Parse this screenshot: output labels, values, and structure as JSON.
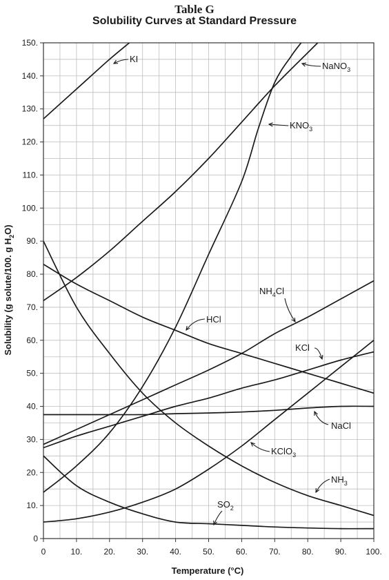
{
  "chart_data": {
    "type": "line",
    "title": "Table G",
    "subtitle": "Solubility Curves at Standard Pressure",
    "xlabel": "Temperature (°C)",
    "ylabel": "Solubility (g solute/100. g H2O)",
    "xlim": [
      0,
      100
    ],
    "ylim": [
      0,
      150
    ],
    "xticks": [
      0,
      10,
      20,
      30,
      40,
      50,
      60,
      70,
      80,
      90,
      100
    ],
    "xtick_labels": [
      "0",
      "10.",
      "20.",
      "30.",
      "40.",
      "50.",
      "60.",
      "70.",
      "80.",
      "90.",
      "100."
    ],
    "yticks": [
      0,
      10,
      20,
      30,
      40,
      50,
      60,
      70,
      80,
      90,
      100,
      110,
      120,
      130,
      140,
      150
    ],
    "ytick_labels": [
      "0",
      "10.",
      "20.",
      "30.",
      "40.",
      "50.",
      "60.",
      "70.",
      "80.",
      "90.",
      "100.",
      "110.",
      "120.",
      "130.",
      "140.",
      "150."
    ],
    "grid": true,
    "series": [
      {
        "name": "KI",
        "x": [
          0,
          10,
          20,
          26
        ],
        "y": [
          127,
          136,
          145,
          150
        ]
      },
      {
        "name": "NaNO3",
        "x": [
          0,
          10,
          20,
          30,
          40,
          50,
          60,
          70,
          80,
          83
        ],
        "y": [
          72,
          79,
          87,
          96,
          105,
          115,
          126,
          137,
          147,
          150
        ]
      },
      {
        "name": "KNO3",
        "x": [
          0,
          10,
          20,
          30,
          40,
          50,
          60,
          65,
          70,
          75,
          78
        ],
        "y": [
          14,
          22,
          32,
          46,
          64,
          86,
          108,
          124,
          138,
          146,
          150
        ]
      },
      {
        "name": "HCl",
        "x": [
          0,
          10,
          20,
          30,
          40,
          50,
          60,
          70,
          80,
          90,
          100
        ],
        "y": [
          83,
          77,
          72,
          67,
          63,
          59,
          56,
          53,
          50,
          47,
          44
        ]
      },
      {
        "name": "NH4Cl",
        "x": [
          0,
          10,
          20,
          30,
          40,
          50,
          60,
          70,
          80,
          90,
          100
        ],
        "y": [
          28.5,
          33,
          37.5,
          42,
          46.5,
          51,
          56,
          62,
          67,
          72.5,
          78
        ]
      },
      {
        "name": "KCl",
        "x": [
          0,
          10,
          20,
          30,
          40,
          50,
          60,
          70,
          80,
          90,
          100
        ],
        "y": [
          27.5,
          31,
          34,
          37,
          40,
          42.5,
          45.5,
          48,
          51,
          54,
          56.5
        ]
      },
      {
        "name": "NaCl",
        "x": [
          0,
          10,
          20,
          30,
          40,
          50,
          60,
          70,
          80,
          90,
          100
        ],
        "y": [
          37.5,
          37.5,
          37.5,
          37.5,
          37.8,
          38,
          38.3,
          38.8,
          39.5,
          40,
          40
        ]
      },
      {
        "name": "KClO3",
        "x": [
          0,
          10,
          20,
          30,
          40,
          50,
          60,
          70,
          80,
          90,
          100
        ],
        "y": [
          5,
          6,
          8,
          11,
          15,
          21,
          28,
          36,
          44,
          52,
          60
        ]
      },
      {
        "name": "NH3",
        "x": [
          0,
          10,
          20,
          30,
          40,
          50,
          60,
          70,
          80,
          90,
          100
        ],
        "y": [
          90,
          70,
          56,
          44,
          35,
          28,
          22,
          17,
          13,
          10,
          7
        ]
      },
      {
        "name": "SO2",
        "x": [
          0,
          10,
          20,
          30,
          40,
          50,
          60,
          70,
          80,
          90,
          100
        ],
        "y": [
          25,
          16,
          11,
          7.5,
          5,
          4.5,
          4,
          3.5,
          3.2,
          3,
          3
        ]
      }
    ],
    "annotations": [
      {
        "label": "KI",
        "sub": ""
      },
      {
        "label": "NaNO",
        "sub": "3"
      },
      {
        "label": "KNO",
        "sub": "3"
      },
      {
        "label": "HCl",
        "sub": ""
      },
      {
        "label": "NH",
        "sub": "4",
        "tail": "Cl"
      },
      {
        "label": "KCl",
        "sub": ""
      },
      {
        "label": "NaCl",
        "sub": ""
      },
      {
        "label": "KClO",
        "sub": "3"
      },
      {
        "label": "NH",
        "sub": "3"
      },
      {
        "label": "SO",
        "sub": "2"
      }
    ]
  }
}
